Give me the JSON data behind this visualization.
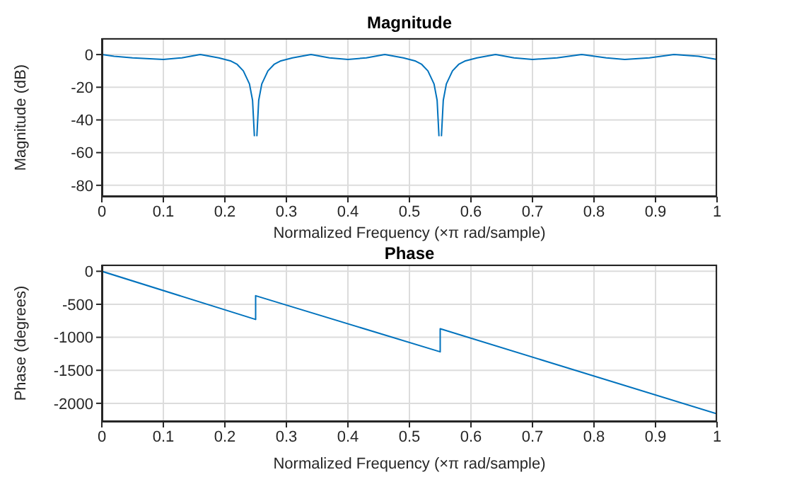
{
  "chart_data": [
    {
      "type": "line",
      "title": "Magnitude",
      "xlabel": "Normalized Frequency  (×π rad/sample)",
      "ylabel": "Magnitude (dB)",
      "xlim": [
        0,
        1
      ],
      "xticks": [
        0,
        0.1,
        0.2,
        0.3,
        0.4,
        0.5,
        0.6,
        0.7,
        0.8,
        0.9,
        1
      ],
      "ylim": [
        -87,
        10
      ],
      "yticks": [
        -80,
        -60,
        -40,
        -20,
        0
      ],
      "grid": true,
      "series": [
        {
          "color": "#0072bd",
          "x": [
            0,
            0.02,
            0.05,
            0.1,
            0.13,
            0.16,
            0.19,
            0.21,
            0.22,
            0.23,
            0.24,
            0.245,
            0.248,
            0.25,
            0.252,
            0.255,
            0.26,
            0.27,
            0.28,
            0.29,
            0.31,
            0.34,
            0.37,
            0.4,
            0.43,
            0.46,
            0.49,
            0.51,
            0.52,
            0.53,
            0.54,
            0.545,
            0.548,
            0.55,
            0.552,
            0.555,
            0.56,
            0.57,
            0.58,
            0.59,
            0.61,
            0.64,
            0.67,
            0.7,
            0.74,
            0.78,
            0.82,
            0.85,
            0.89,
            0.93,
            0.97,
            1
          ],
          "values": [
            0,
            -1,
            -2,
            -3,
            -2,
            0,
            -2,
            -4,
            -6,
            -10,
            -18,
            -28,
            -50,
            null,
            -50,
            -28,
            -18,
            -10,
            -6,
            -4,
            -2,
            0,
            -2,
            -3,
            -2,
            0,
            -2,
            -4,
            -6,
            -10,
            -18,
            -28,
            -50,
            null,
            -50,
            -28,
            -18,
            -10,
            -6,
            -4,
            -2,
            0,
            -2,
            -3,
            -2,
            0,
            -2,
            -3,
            -2,
            0,
            -1,
            -3
          ]
        }
      ]
    },
    {
      "type": "line",
      "title": "Phase",
      "xlabel": "Normalized Frequency  (×π rad/sample)",
      "ylabel": "Phase (degrees)",
      "xlim": [
        0,
        1
      ],
      "xticks": [
        0,
        0.1,
        0.2,
        0.3,
        0.4,
        0.5,
        0.6,
        0.7,
        0.8,
        0.9,
        1
      ],
      "ylim": [
        -2280,
        100
      ],
      "yticks": [
        -2000,
        -1500,
        -1000,
        -500,
        0
      ],
      "grid": true,
      "series": [
        {
          "color": "#0072bd",
          "x": [
            0,
            0.25,
            0.25,
            0.25,
            0.25,
            0.55,
            0.55,
            1
          ],
          "values": [
            0,
            -730,
            -550,
            -550,
            -370,
            -1220,
            -870,
            -2160
          ]
        }
      ]
    }
  ]
}
